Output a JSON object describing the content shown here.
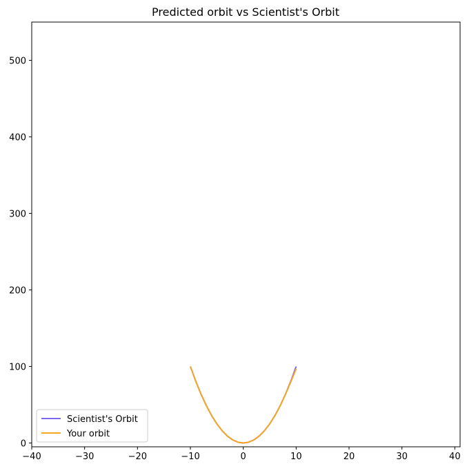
{
  "chart_data": {
    "type": "line",
    "title": "Predicted orbit vs Scientist's Orbit",
    "xlabel": "",
    "ylabel": "",
    "xlim": [
      -40,
      41
    ],
    "ylim": [
      -5,
      550
    ],
    "xticks": [
      -40,
      -30,
      -20,
      -10,
      0,
      10,
      20,
      30,
      40
    ],
    "xtick_labels": [
      "−40",
      "−30",
      "−20",
      "−10",
      "0",
      "10",
      "20",
      "30",
      "40"
    ],
    "yticks": [
      0,
      100,
      200,
      300,
      400,
      500
    ],
    "ytick_labels": [
      "0",
      "100",
      "200",
      "300",
      "400",
      "500"
    ],
    "grid": false,
    "legend_position": "lower-left",
    "series": [
      {
        "name": "Scientist's Orbit",
        "color": "#7b68ee",
        "x": [
          -10,
          -9,
          -8,
          -7,
          -6,
          -5,
          -4,
          -3,
          -2,
          -1,
          0,
          1,
          2,
          3,
          4,
          5,
          6,
          7,
          8,
          9,
          10
        ],
        "y": [
          100,
          81,
          64,
          49,
          36,
          25,
          16,
          9,
          4,
          1,
          0,
          1,
          4,
          9,
          16,
          25,
          36,
          49,
          64,
          81,
          100
        ]
      },
      {
        "name": "Your orbit",
        "color": "#f5a623",
        "x": [
          -10,
          -9,
          -8,
          -7,
          -6,
          -5,
          -4,
          -3,
          -2,
          -1,
          0,
          1,
          2,
          3,
          4,
          5,
          6,
          7,
          8,
          9,
          10
        ],
        "y": [
          100,
          81,
          64,
          49,
          36,
          25,
          16,
          9,
          4,
          1,
          0,
          1,
          4,
          9,
          16,
          25,
          36,
          49,
          64,
          80,
          97
        ]
      }
    ]
  }
}
